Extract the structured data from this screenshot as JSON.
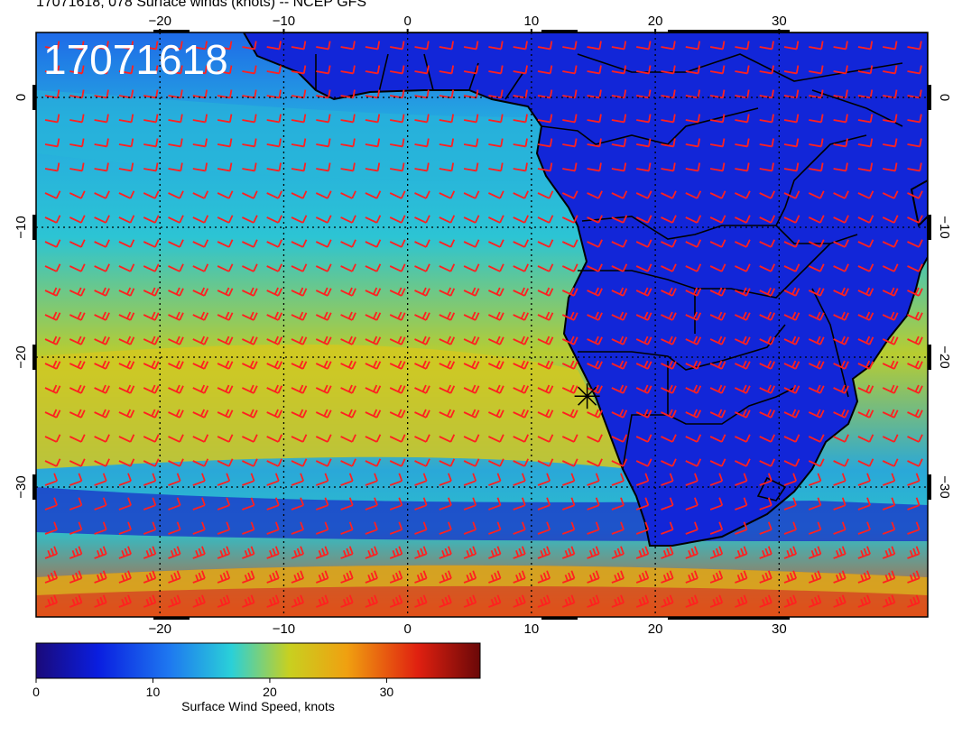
{
  "header": {
    "title": "17071618, 078 Surface winds (knots) -- NCEP GFS"
  },
  "map": {
    "stamp": "17071618",
    "lon_range": [
      -30,
      42
    ],
    "lat_range": [
      -40,
      5
    ],
    "lon_ticks": [
      -20,
      -10,
      0,
      10,
      20,
      30
    ],
    "lat_ticks": [
      0,
      -10,
      -20,
      -30
    ],
    "lon_tick_labels": [
      "−20",
      "−10",
      "0",
      "10",
      "20",
      "30"
    ],
    "lat_tick_labels": [
      "0",
      "−10",
      "−20",
      "−30"
    ],
    "grid": "dotted",
    "barb_color": "#ff2020",
    "coast_color": "#000000",
    "marker": {
      "lon": 14.5,
      "lat": -23
    }
  },
  "colorbar": {
    "label": "Surface Wind Speed, knots",
    "range": [
      0,
      38
    ],
    "ticks": [
      0,
      10,
      20,
      30
    ],
    "tick_labels": [
      "0",
      "10",
      "20",
      "30"
    ],
    "colors": [
      "#1a0a7a",
      "#0a1ee0",
      "#1e78f0",
      "#2ad0d8",
      "#c8d020",
      "#f0a010",
      "#e02010",
      "#6a0808"
    ]
  }
}
